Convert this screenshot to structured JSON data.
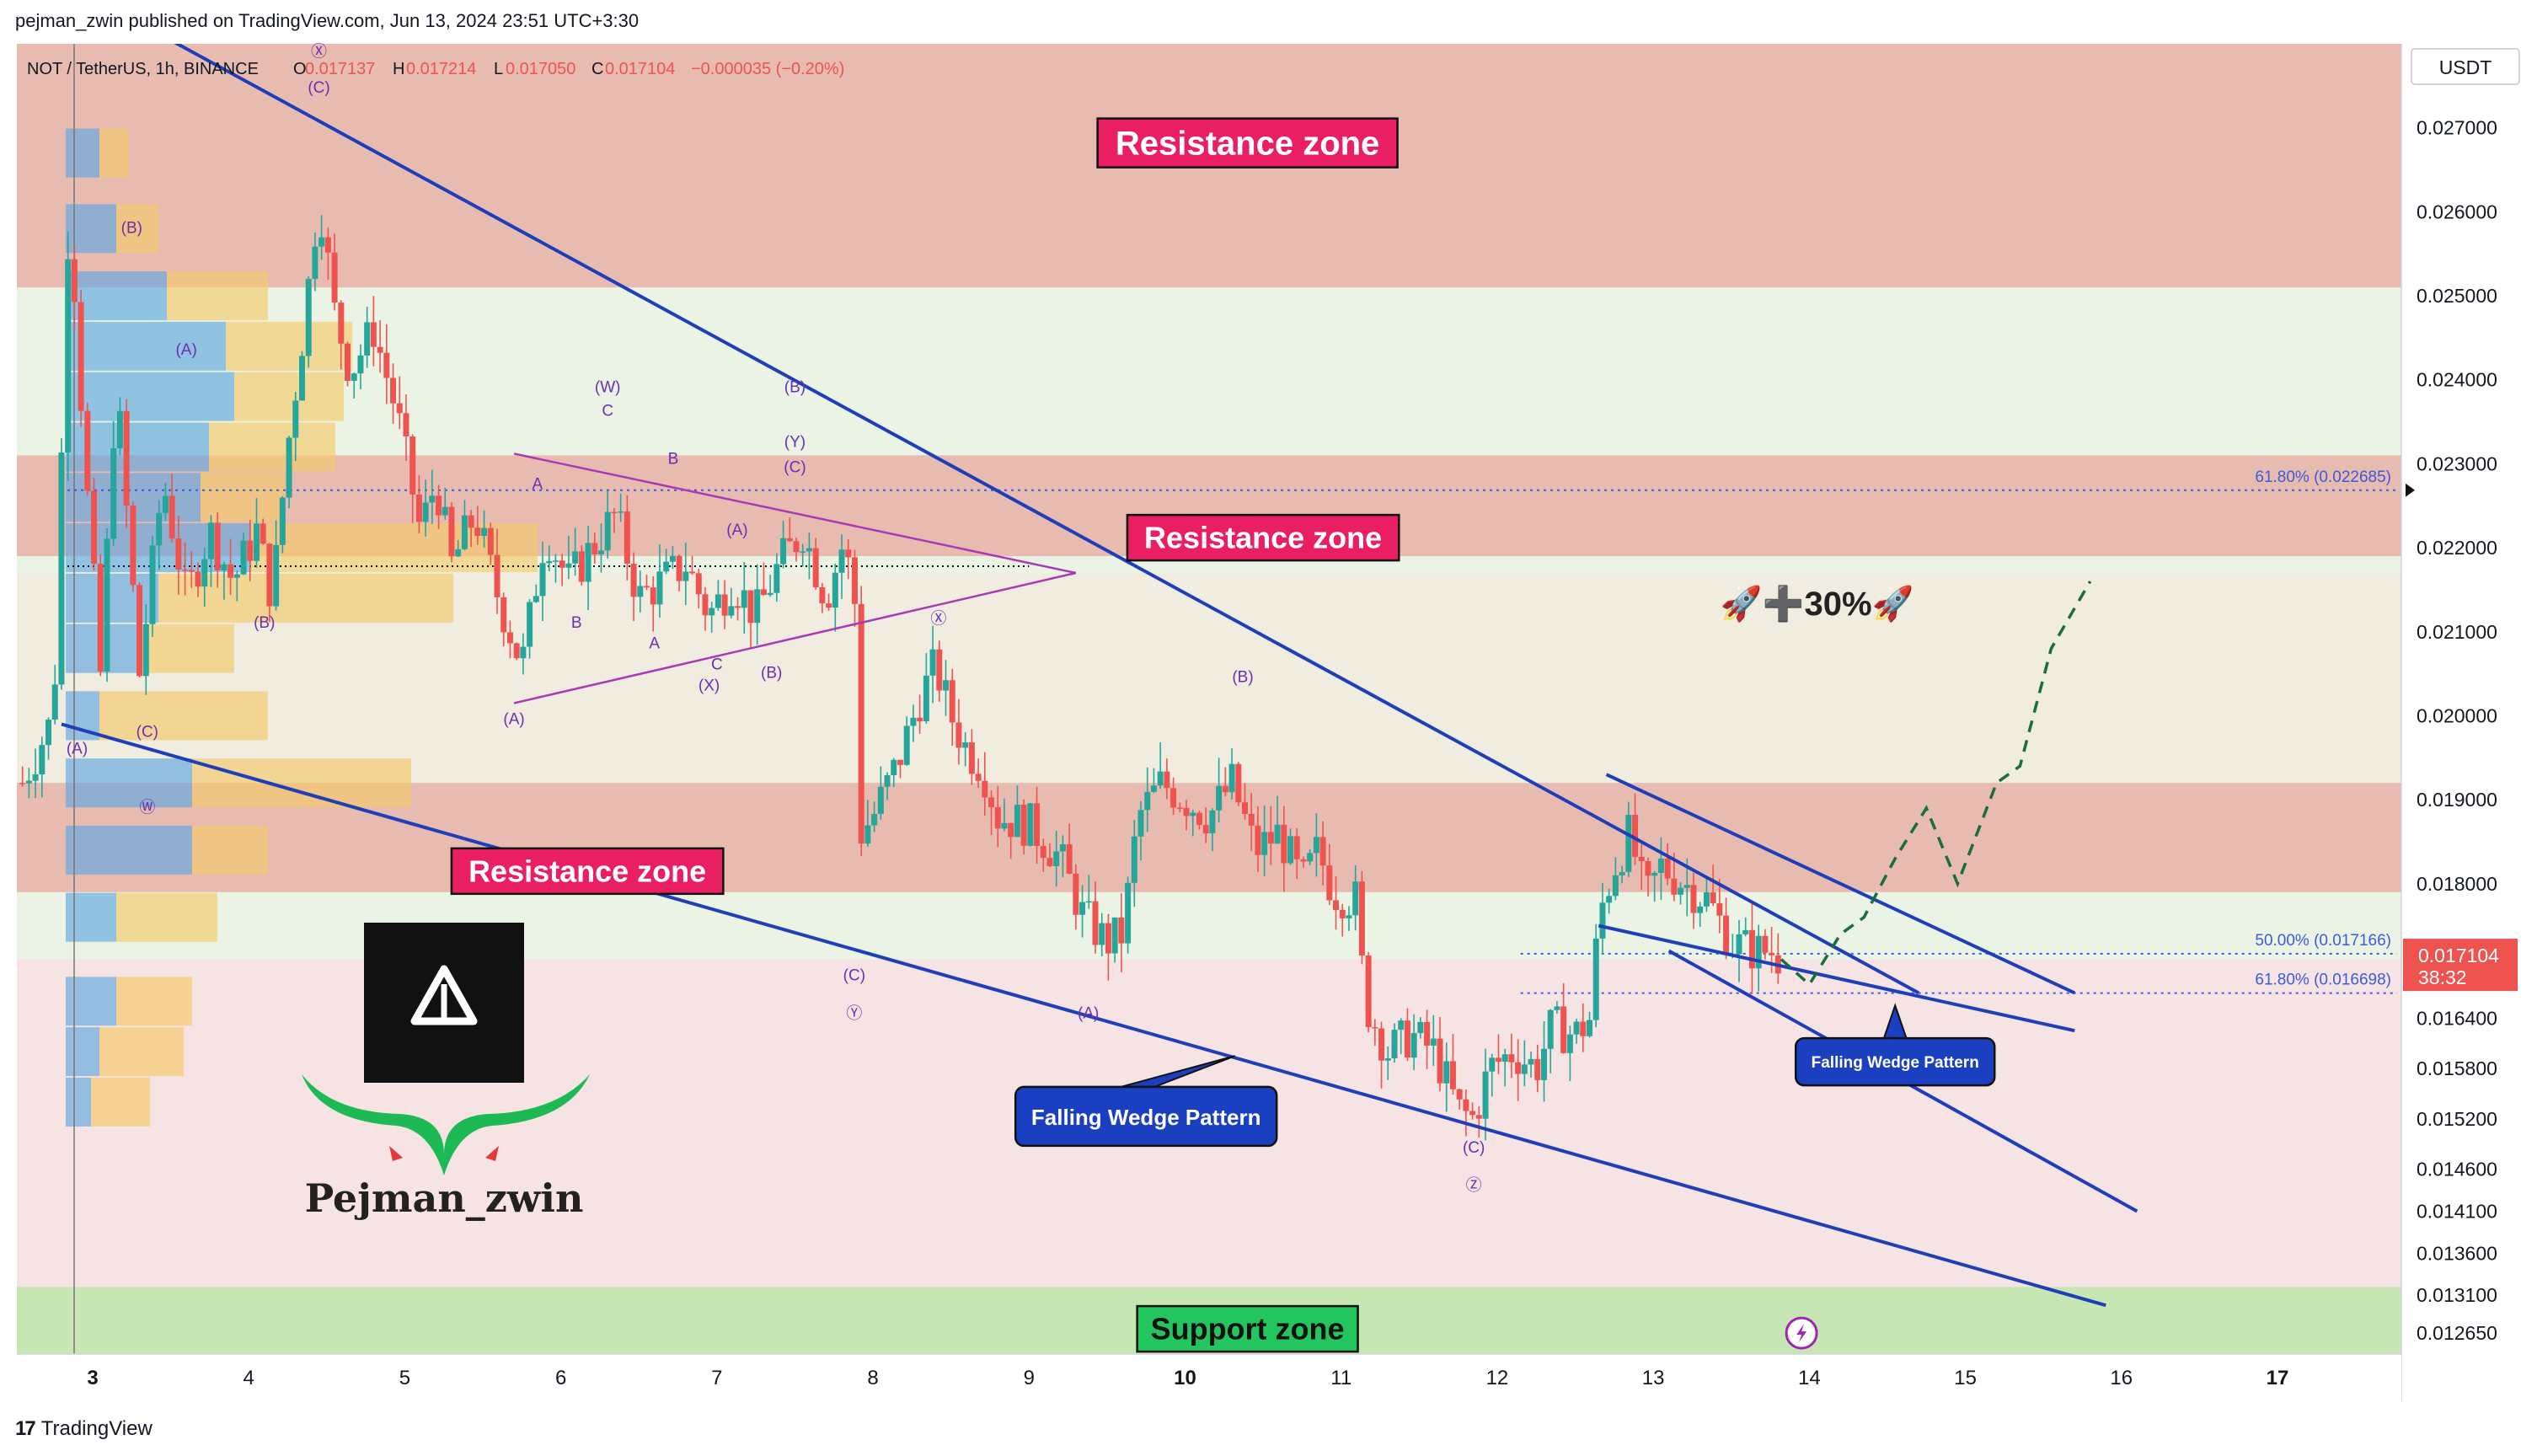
{
  "header": {
    "published": "pejman_zwin published on TradingView.com, Jun 13, 2024 23:51 UTC+3:30"
  },
  "footer": {
    "brand": "TradingView",
    "logo_icon": "tradingview-logo-icon"
  },
  "ohlc": {
    "symbol": "NOT / TetherUS, 1h, BINANCE",
    "o_label": "O",
    "o": "0.017137",
    "h_label": "H",
    "h": "0.017214",
    "l_label": "L",
    "l": "0.017050",
    "c_label": "C",
    "c": "0.017104",
    "change": "−0.000035 (−0.20%)"
  },
  "colors": {
    "up": "#26a69a",
    "down": "#ef5350",
    "line": "#1e3fb8",
    "triangle": "#a83bb5",
    "resistance_fill": "#e8b0a8",
    "support_fill": "#c6e6b4",
    "label_red": "#e91e63",
    "label_green": "#22c55e"
  },
  "chart_data": {
    "type": "candlestick",
    "title": "",
    "currency": "USDT",
    "ylim": [
      0.0124,
      0.028
    ],
    "y_ticks": [
      "0.027000",
      "0.026000",
      "0.025000",
      "0.024000",
      "0.023000",
      "0.022000",
      "0.021000",
      "0.020000",
      "0.019000",
      "0.018000",
      "0.016400",
      "0.015800",
      "0.015200",
      "0.014600",
      "0.014100",
      "0.013600",
      "0.013100",
      "0.012650"
    ],
    "x_ticks": [
      {
        "label": "3",
        "t": 3.0
      },
      {
        "label": "4",
        "t": 4.0
      },
      {
        "label": "5",
        "t": 5.0
      },
      {
        "label": "6",
        "t": 6.0
      },
      {
        "label": "7",
        "t": 7.0
      },
      {
        "label": "8",
        "t": 8.0
      },
      {
        "label": "9",
        "t": 9.0
      },
      {
        "label": "10",
        "t": 10.0
      },
      {
        "label": "11",
        "t": 11.0
      },
      {
        "label": "12",
        "t": 12.0
      },
      {
        "label": "13",
        "t": 13.0
      },
      {
        "label": "14",
        "t": 14.0
      },
      {
        "label": "15",
        "t": 15.0
      },
      {
        "label": "16",
        "t": 16.0
      },
      {
        "label": "17",
        "t": 17.0
      }
    ],
    "last_price": "0.017104",
    "countdown": "38:32",
    "zones": [
      {
        "name": "resistance",
        "label": "Resistance zone",
        "y0": 0.0251,
        "y1": 0.028
      },
      {
        "name": "resistance",
        "label": "Resistance zone",
        "y0": 0.0219,
        "y1": 0.0231
      },
      {
        "name": "resistance",
        "label": "Resistance zone",
        "y0": 0.0179,
        "y1": 0.0192
      },
      {
        "name": "support",
        "label": "Support zone",
        "y0": 0.0124,
        "y1": 0.0132
      }
    ],
    "fib_levels": [
      {
        "label": "61.80% (0.022685)",
        "y": 0.022685
      },
      {
        "label": "50.00% (0.017166)",
        "y": 0.017166
      },
      {
        "label": "61.80% (0.016698)",
        "y": 0.016698
      }
    ],
    "candles_path": [
      [
        2.55,
        0.0192
      ],
      [
        2.75,
        0.02
      ],
      [
        2.85,
        0.0262
      ],
      [
        2.95,
        0.023
      ],
      [
        3.05,
        0.0205
      ],
      [
        3.15,
        0.024
      ],
      [
        3.3,
        0.0205
      ],
      [
        3.45,
        0.0228
      ],
      [
        3.6,
        0.0214
      ],
      [
        3.75,
        0.0222
      ],
      [
        3.9,
        0.0216
      ],
      [
        4.05,
        0.0222
      ],
      [
        4.15,
        0.0214
      ],
      [
        4.25,
        0.0232
      ],
      [
        4.35,
        0.0246
      ],
      [
        4.45,
        0.0262
      ],
      [
        4.55,
        0.0248
      ],
      [
        4.65,
        0.0241
      ],
      [
        4.8,
        0.0246
      ],
      [
        4.95,
        0.0236
      ],
      [
        5.1,
        0.0222
      ],
      [
        5.2,
        0.0228
      ],
      [
        5.3,
        0.0218
      ],
      [
        5.45,
        0.0224
      ],
      [
        5.6,
        0.0214
      ],
      [
        5.75,
        0.0206
      ],
      [
        5.9,
        0.0222
      ],
      [
        6.05,
        0.0216
      ],
      [
        6.2,
        0.022
      ],
      [
        6.35,
        0.0224
      ],
      [
        6.5,
        0.0214
      ],
      [
        6.65,
        0.0216
      ],
      [
        6.8,
        0.0218
      ],
      [
        6.95,
        0.0212
      ],
      [
        7.1,
        0.0216
      ],
      [
        7.25,
        0.0212
      ],
      [
        7.4,
        0.0218
      ],
      [
        7.55,
        0.0222
      ],
      [
        7.7,
        0.0214
      ],
      [
        7.8,
        0.022
      ],
      [
        7.88,
        0.0216
      ],
      [
        7.92,
        0.0186
      ],
      [
        8.0,
        0.0188
      ],
      [
        8.15,
        0.0194
      ],
      [
        8.3,
        0.0202
      ],
      [
        8.4,
        0.0206
      ],
      [
        8.5,
        0.02
      ],
      [
        8.6,
        0.0196
      ],
      [
        8.7,
        0.0194
      ],
      [
        8.8,
        0.0188
      ],
      [
        9.0,
        0.0187
      ],
      [
        9.2,
        0.0183
      ],
      [
        9.35,
        0.0176
      ],
      [
        9.5,
        0.0173
      ],
      [
        9.6,
        0.0174
      ],
      [
        9.7,
        0.0188
      ],
      [
        9.85,
        0.0192
      ],
      [
        10.0,
        0.019
      ],
      [
        10.15,
        0.0188
      ],
      [
        10.3,
        0.0192
      ],
      [
        10.45,
        0.0184
      ],
      [
        10.6,
        0.0186
      ],
      [
        10.75,
        0.018
      ],
      [
        10.85,
        0.0184
      ],
      [
        10.95,
        0.0179
      ],
      [
        11.1,
        0.0178
      ],
      [
        11.15,
        0.0166
      ],
      [
        11.3,
        0.016
      ],
      [
        11.45,
        0.0162
      ],
      [
        11.6,
        0.016
      ],
      [
        11.75,
        0.0153
      ],
      [
        11.85,
        0.0152
      ],
      [
        11.95,
        0.0158
      ],
      [
        12.1,
        0.016
      ],
      [
        12.25,
        0.0158
      ],
      [
        12.35,
        0.0163
      ],
      [
        12.5,
        0.0162
      ],
      [
        12.6,
        0.0164
      ],
      [
        12.65,
        0.0176
      ],
      [
        12.75,
        0.0182
      ],
      [
        12.85,
        0.0186
      ],
      [
        12.95,
        0.0178
      ],
      [
        13.05,
        0.0182
      ],
      [
        13.2,
        0.018
      ],
      [
        13.35,
        0.0178
      ],
      [
        13.5,
        0.0173
      ],
      [
        13.65,
        0.0172
      ],
      [
        13.75,
        0.0172
      ],
      [
        13.82,
        0.0171
      ]
    ],
    "projection": [
      [
        13.82,
        0.0171
      ],
      [
        14.0,
        0.0168
      ],
      [
        14.2,
        0.0174
      ],
      [
        14.35,
        0.0176
      ],
      [
        14.55,
        0.0183
      ],
      [
        14.75,
        0.0189
      ],
      [
        14.95,
        0.018
      ],
      [
        15.2,
        0.0192
      ],
      [
        15.35,
        0.0194
      ],
      [
        15.55,
        0.0208
      ],
      [
        15.8,
        0.0216
      ]
    ],
    "trendlines": [
      {
        "t1": 2.95,
        "p1": 0.0286,
        "t2": 14.7,
        "p2": 0.0167
      },
      {
        "t1": 2.8,
        "p1": 0.0199,
        "t2": 15.9,
        "p2": 0.01298
      },
      {
        "t1": 12.7,
        "p1": 0.0193,
        "t2": 15.7,
        "p2": 0.0167
      },
      {
        "t1": 12.65,
        "p1": 0.0175,
        "t2": 15.7,
        "p2": 0.01625
      },
      {
        "t1": 13.1,
        "p1": 0.0172,
        "t2": 16.1,
        "p2": 0.0141
      }
    ],
    "triangle": [
      {
        "t1": 5.7,
        "p1": 0.02312,
        "t2": 9.3,
        "p2": 0.0217
      },
      {
        "t1": 5.7,
        "p1": 0.02015,
        "t2": 9.3,
        "p2": 0.0217
      }
    ],
    "wave_labels": [
      {
        "text": "Ⓧ",
        "t": 4.45,
        "p": 0.02785
      },
      {
        "text": "(C)",
        "t": 4.45,
        "p": 0.02742
      },
      {
        "text": "(B)",
        "t": 3.25,
        "p": 0.02575
      },
      {
        "text": "(A)",
        "t": 3.6,
        "p": 0.0243
      },
      {
        "text": "(B)",
        "t": 4.1,
        "p": 0.02105
      },
      {
        "text": "(C)",
        "t": 3.35,
        "p": 0.01975
      },
      {
        "text": "(A)",
        "t": 2.9,
        "p": 0.01955
      },
      {
        "text": "Ⓦ",
        "t": 3.35,
        "p": 0.01885
      },
      {
        "text": "(W)",
        "t": 6.3,
        "p": 0.02385
      },
      {
        "text": "C",
        "t": 6.3,
        "p": 0.02357
      },
      {
        "text": "A",
        "t": 5.85,
        "p": 0.0227
      },
      {
        "text": "B",
        "t": 6.72,
        "p": 0.023
      },
      {
        "text": "B",
        "t": 6.1,
        "p": 0.02105
      },
      {
        "text": "A",
        "t": 6.6,
        "p": 0.0208
      },
      {
        "text": "C",
        "t": 7.0,
        "p": 0.02055
      },
      {
        "text": "(X)",
        "t": 6.95,
        "p": 0.0203
      },
      {
        "text": "(A)",
        "t": 5.7,
        "p": 0.0199
      },
      {
        "text": "(B)",
        "t": 7.5,
        "p": 0.02385
      },
      {
        "text": "(Y)",
        "t": 7.5,
        "p": 0.0232
      },
      {
        "text": "(C)",
        "t": 7.5,
        "p": 0.0229
      },
      {
        "text": "(A)",
        "t": 7.13,
        "p": 0.02215
      },
      {
        "text": "(B)",
        "t": 7.35,
        "p": 0.02045
      },
      {
        "text": "Ⓧ",
        "t": 8.42,
        "p": 0.0211
      },
      {
        "text": "(C)",
        "t": 7.88,
        "p": 0.01685
      },
      {
        "text": "Ⓨ",
        "t": 7.88,
        "p": 0.0164
      },
      {
        "text": "(A)",
        "t": 9.38,
        "p": 0.0164
      },
      {
        "text": "(B)",
        "t": 10.37,
        "p": 0.0204
      },
      {
        "text": "(C)",
        "t": 11.85,
        "p": 0.0148
      },
      {
        "text": "Ⓩ",
        "t": 11.85,
        "p": 0.01435
      }
    ],
    "annotations": {
      "gain": "🚀➕30%🚀",
      "falling_wedge_1": "Falling Wedge Pattern",
      "falling_wedge_2": "Falling Wedge Pattern"
    }
  },
  "watermark": {
    "name": "Pejman_zwin",
    "logo_icon": "warning-triangle-icon"
  },
  "lightning_icon": "lightning-icon"
}
